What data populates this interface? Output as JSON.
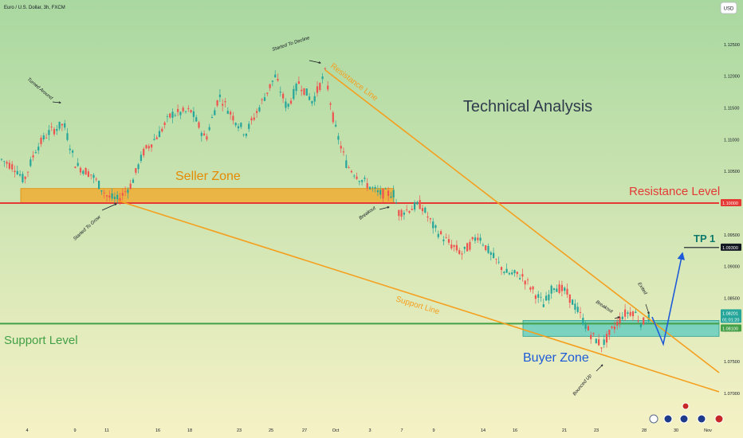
{
  "header": {
    "symbol_title": "Euro / U.S. Dollar, 3h, FXCM",
    "currency_button": "USD"
  },
  "colors": {
    "bg_top": "#a9d8a0",
    "bg_bottom": "#f5f2c8",
    "up": "#26a69a",
    "down": "#ef5350",
    "resistance": "#e53935",
    "support": "#43a047",
    "trendline": "#f59f1e",
    "seller_zone": "#f5a623",
    "buyer_zone": "#4dc8c0",
    "projection": "#1e5bd8",
    "tp": "#0d7a6a"
  },
  "chart_data": {
    "type": "candlestick",
    "title": "Technical Analysis",
    "ylim": [
      1.068,
      1.1295
    ],
    "yticks": [
      "1.12500",
      "1.12000",
      "1.11500",
      "1.11000",
      "1.10500",
      "1.10000",
      "1.09500",
      "1.09000",
      "1.08500",
      "1.08000",
      "1.07500",
      "1.07000"
    ],
    "xticks": [
      "4",
      "9",
      "11",
      "16",
      "18",
      "23",
      "25",
      "27",
      "Oct",
      "3",
      "7",
      "9",
      "14",
      "16",
      "21",
      "23",
      "28",
      "30",
      "Nov"
    ],
    "price_labels": [
      {
        "text": "1.10000",
        "kind": "resistance"
      },
      {
        "text": "1.09300",
        "kind": "target"
      },
      {
        "text": "1.08201",
        "kind": "last"
      },
      {
        "text": "01:01:20",
        "kind": "timer"
      },
      {
        "text": "1.08100",
        "kind": "support"
      }
    ],
    "levels": {
      "resistance": {
        "label": "Resistance Level",
        "price": 1.1
      },
      "support": {
        "label": "Support Level",
        "price": 1.081
      },
      "tp": {
        "label": "TP 1",
        "price": 1.093
      }
    },
    "zones": {
      "seller": {
        "label": "Seller Zone",
        "from": 1.1,
        "to": 1.1023
      },
      "buyer": {
        "label": "Buyer Zone",
        "from": 1.079,
        "to": 1.0815
      }
    },
    "line_labels": {
      "resistance_line": "Resistance Line",
      "support_line": "Support Line"
    },
    "annotations": [
      "Turned Around",
      "Started To Grow",
      "Started To Decline",
      "Breakout",
      "Breakout",
      "Exited",
      "Bounced Up"
    ]
  }
}
